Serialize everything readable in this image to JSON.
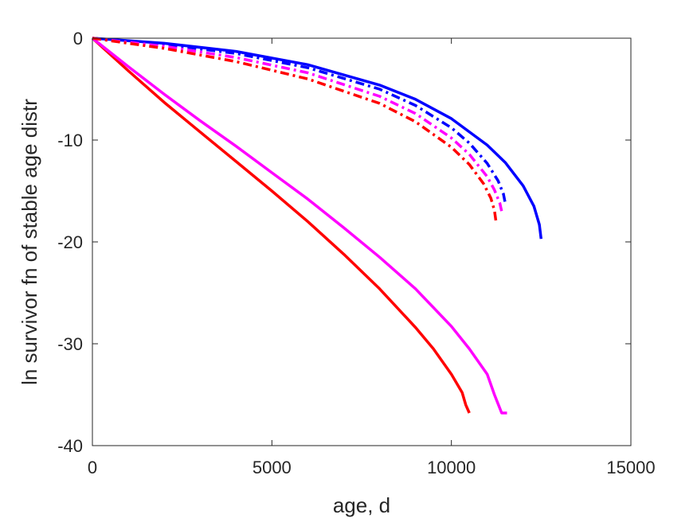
{
  "chart_data": {
    "type": "line",
    "xlabel": "age, d",
    "ylabel": "ln survivor fn of stable age distr",
    "xlim": [
      0,
      15000
    ],
    "ylim": [
      -40,
      0
    ],
    "xticks": [
      0,
      5000,
      10000,
      15000
    ],
    "yticks": [
      0,
      -10,
      -20,
      -30,
      -40
    ],
    "xtick_labels": [
      "0",
      "5000",
      "10000",
      "15000"
    ],
    "ytick_labels": [
      "0",
      "-10",
      "-20",
      "-30",
      "-40"
    ],
    "grid": false,
    "series": [
      {
        "color": "#ff0000",
        "style": "solid",
        "x": [
          0,
          1000,
          2000,
          3000,
          4000,
          5000,
          6000,
          7000,
          8000,
          9000,
          9500,
          10000,
          10300,
          10400,
          10500
        ],
        "y": [
          0,
          -3.2,
          -6.3,
          -9.2,
          -12.1,
          -15.0,
          -18.0,
          -21.2,
          -24.6,
          -28.4,
          -30.5,
          -33.0,
          -34.8,
          -36.0,
          -36.8
        ]
      },
      {
        "color": "#ff00ff",
        "style": "solid",
        "x": [
          0,
          1000,
          2000,
          3000,
          4000,
          5000,
          6000,
          7000,
          8000,
          9000,
          10000,
          10500,
          11000,
          11200,
          11400,
          11550
        ],
        "y": [
          0,
          -2.8,
          -5.5,
          -8.1,
          -10.6,
          -13.2,
          -15.8,
          -18.6,
          -21.5,
          -24.6,
          -28.3,
          -30.5,
          -33.0,
          -35.0,
          -36.8,
          -36.8
        ]
      },
      {
        "color": "#0000ff",
        "style": "solid",
        "x": [
          0,
          2000,
          4000,
          6000,
          8000,
          9000,
          10000,
          11000,
          11500,
          12000,
          12300,
          12450,
          12500
        ],
        "y": [
          0,
          -0.5,
          -1.3,
          -2.6,
          -4.6,
          -6.0,
          -7.9,
          -10.5,
          -12.2,
          -14.5,
          -16.5,
          -18.3,
          -19.7
        ]
      },
      {
        "color": "#0000ff",
        "style": "dashdot",
        "x": [
          0,
          2000,
          4000,
          6000,
          8000,
          9000,
          10000,
          10500,
          11000,
          11300,
          11450,
          11500
        ],
        "y": [
          0,
          -0.6,
          -1.5,
          -2.9,
          -5.0,
          -6.6,
          -8.8,
          -10.3,
          -12.3,
          -14.0,
          -15.3,
          -16.2
        ]
      },
      {
        "color": "#ff00ff",
        "style": "dashdot",
        "x": [
          0,
          2000,
          4000,
          6000,
          8000,
          9000,
          10000,
          10500,
          11000,
          11200,
          11350,
          11400
        ],
        "y": [
          0,
          -0.8,
          -1.9,
          -3.4,
          -5.7,
          -7.4,
          -9.8,
          -11.4,
          -13.6,
          -14.9,
          -16.2,
          -17.0
        ]
      },
      {
        "color": "#ff0000",
        "style": "dashdot",
        "x": [
          0,
          2000,
          4000,
          6000,
          8000,
          9000,
          10000,
          10500,
          10900,
          11100,
          11200,
          11250
        ],
        "y": [
          0,
          -1.0,
          -2.3,
          -4.0,
          -6.4,
          -8.2,
          -10.7,
          -12.4,
          -14.3,
          -15.7,
          -16.9,
          -18.2
        ]
      }
    ]
  }
}
